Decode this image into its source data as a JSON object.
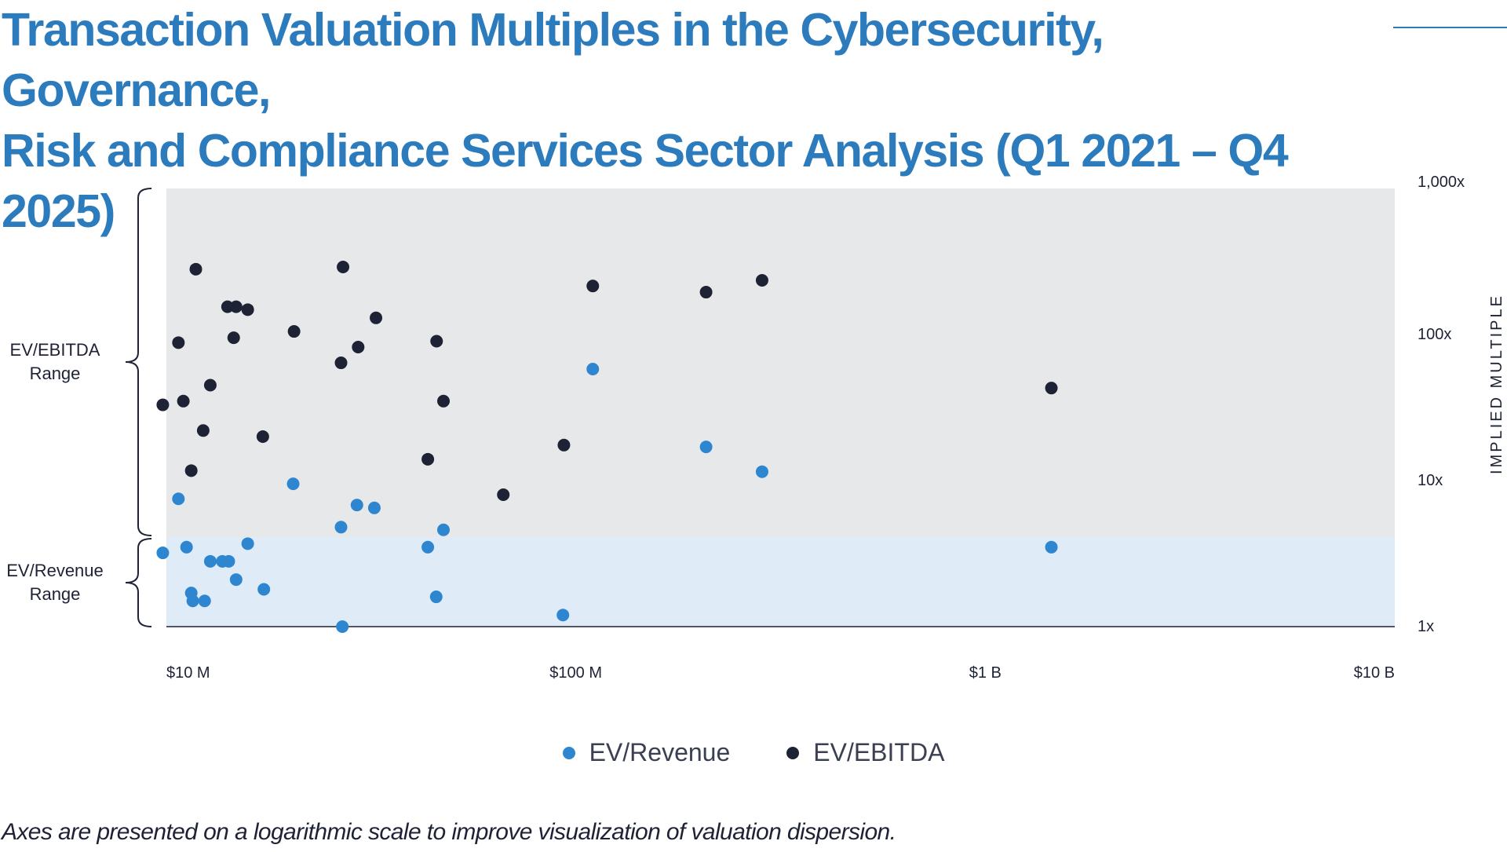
{
  "title_line1": "Transaction Valuation Multiples in the Cybersecurity, Governance,",
  "title_line2": "Risk and Compliance Services Sector Analysis (Q1 2021 – Q4 2025)",
  "footnote": "Axes are presented on a logarithmic scale to improve visualization of valuation dispersion.",
  "colors": {
    "title": "#2b7bbd",
    "ev_revenue": "#2e86d0",
    "ev_ebitda": "#1e2235",
    "ebitda_band": "#e7e8ea",
    "revenue_band": "#dfecf7"
  },
  "chart_data": {
    "type": "scatter",
    "xscale": "log",
    "yscale": "log",
    "xlim": [
      10,
      10000
    ],
    "ylim": [
      1,
      1000
    ],
    "x_unit": "enterprise value ($M)",
    "yaxis_label": "IMPLIED MULTIPLE",
    "x_ticks": [
      {
        "value": 10,
        "label": "$10 M"
      },
      {
        "value": 100,
        "label": "$100 M"
      },
      {
        "value": 1000,
        "label": "$1 B"
      },
      {
        "value": 10000,
        "label": "$10 B"
      }
    ],
    "y_ticks": [
      {
        "value": 1000,
        "label": "1,000x"
      },
      {
        "value": 100,
        "label": "100x"
      },
      {
        "value": 10,
        "label": "10x"
      },
      {
        "value": 1,
        "label": "1x"
      }
    ],
    "bands": [
      {
        "name": "EV/EBITDA Range",
        "label_lines": [
          "EV/EBITDA",
          "Range"
        ],
        "ymin": 4.1,
        "ymax": 1000
      },
      {
        "name": "EV/Revenue Range",
        "label_lines": [
          "EV/Revenue",
          "Range"
        ],
        "ymin": 1,
        "ymax": 4.1
      }
    ],
    "legend": [
      {
        "name": "EV/Revenue",
        "series": "ev_revenue"
      },
      {
        "name": "EV/EBITDA",
        "series": "ev_ebitda"
      }
    ],
    "series": [
      {
        "name": "EV/Revenue",
        "key": "ev_revenue",
        "points": [
          {
            "x": 9.8,
            "y": 3.2
          },
          {
            "x": 10.7,
            "y": 7.5
          },
          {
            "x": 11.2,
            "y": 3.5
          },
          {
            "x": 11.5,
            "y": 1.7
          },
          {
            "x": 11.6,
            "y": 1.5
          },
          {
            "x": 12.4,
            "y": 1.5
          },
          {
            "x": 12.8,
            "y": 2.8
          },
          {
            "x": 13.7,
            "y": 2.8
          },
          {
            "x": 14.2,
            "y": 2.8
          },
          {
            "x": 14.8,
            "y": 2.1
          },
          {
            "x": 15.8,
            "y": 3.7
          },
          {
            "x": 17.3,
            "y": 1.8
          },
          {
            "x": 20.4,
            "y": 9.5
          },
          {
            "x": 26.7,
            "y": 4.8
          },
          {
            "x": 26.9,
            "y": 1.0
          },
          {
            "x": 29.2,
            "y": 6.8
          },
          {
            "x": 32.2,
            "y": 6.5
          },
          {
            "x": 43.5,
            "y": 3.5
          },
          {
            "x": 45.6,
            "y": 1.6
          },
          {
            "x": 47.5,
            "y": 4.6
          },
          {
            "x": 93.0,
            "y": 1.2
          },
          {
            "x": 110,
            "y": 58
          },
          {
            "x": 208,
            "y": 17
          },
          {
            "x": 285,
            "y": 11.5
          },
          {
            "x": 1450,
            "y": 3.5
          }
        ]
      },
      {
        "name": "EV/EBITDA",
        "key": "ev_ebitda",
        "points": [
          {
            "x": 9.8,
            "y": 33
          },
          {
            "x": 10.7,
            "y": 88
          },
          {
            "x": 11.0,
            "y": 35
          },
          {
            "x": 11.5,
            "y": 11.7
          },
          {
            "x": 11.8,
            "y": 280
          },
          {
            "x": 12.3,
            "y": 22
          },
          {
            "x": 12.8,
            "y": 45
          },
          {
            "x": 14.1,
            "y": 155
          },
          {
            "x": 14.6,
            "y": 95
          },
          {
            "x": 14.8,
            "y": 155
          },
          {
            "x": 15.8,
            "y": 148
          },
          {
            "x": 17.2,
            "y": 20
          },
          {
            "x": 20.5,
            "y": 105
          },
          {
            "x": 26.7,
            "y": 64
          },
          {
            "x": 27.0,
            "y": 290
          },
          {
            "x": 29.4,
            "y": 82
          },
          {
            "x": 32.5,
            "y": 130
          },
          {
            "x": 43.5,
            "y": 14
          },
          {
            "x": 45.7,
            "y": 90
          },
          {
            "x": 47.5,
            "y": 35
          },
          {
            "x": 66.5,
            "y": 8.0
          },
          {
            "x": 93.5,
            "y": 17.5
          },
          {
            "x": 110,
            "y": 215
          },
          {
            "x": 208,
            "y": 195
          },
          {
            "x": 285,
            "y": 235
          },
          {
            "x": 1450,
            "y": 43
          }
        ]
      }
    ]
  }
}
